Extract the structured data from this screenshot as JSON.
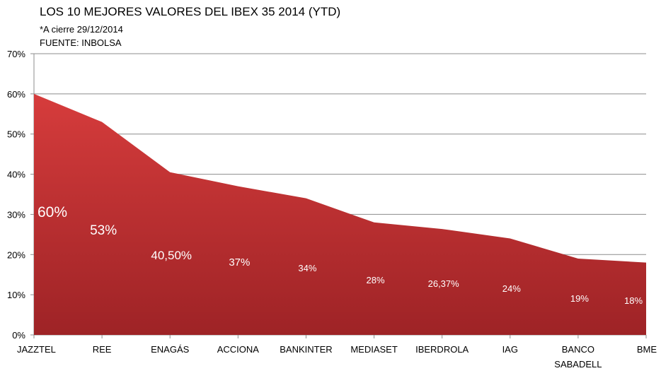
{
  "chart_data": {
    "type": "area",
    "title": "LOS 10 MEJORES VALORES DEL IBEX 35 2014 (YTD)",
    "subtitle": [
      "*A cierre 29/12/2014",
      "FUENTE: INBOLSA"
    ],
    "categories": [
      "JAZZTEL",
      "REE",
      "ENAGÁS",
      "ACCIONA",
      "BANKINTER",
      "MEDIASET",
      "IBERDROLA",
      "IAG",
      "BANCO SABADELL",
      "BME"
    ],
    "values": [
      60,
      53,
      40.5,
      37,
      34,
      28,
      26.37,
      24,
      19,
      18
    ],
    "data_labels": [
      "60%",
      "53%",
      "40,50%",
      "37%",
      "34%",
      "28%",
      "26,37%",
      "24%",
      "19%",
      "18%"
    ],
    "ylim": [
      0,
      70
    ],
    "yticks": [
      "0%",
      "10%",
      "20%",
      "30%",
      "40%",
      "50%",
      "60%",
      "70%"
    ],
    "grid": true,
    "colors": {
      "fill_top": "#d63c3c",
      "fill_bottom": "#9e2326",
      "grid": "#8c8c8c",
      "label": "#ffffff"
    }
  }
}
